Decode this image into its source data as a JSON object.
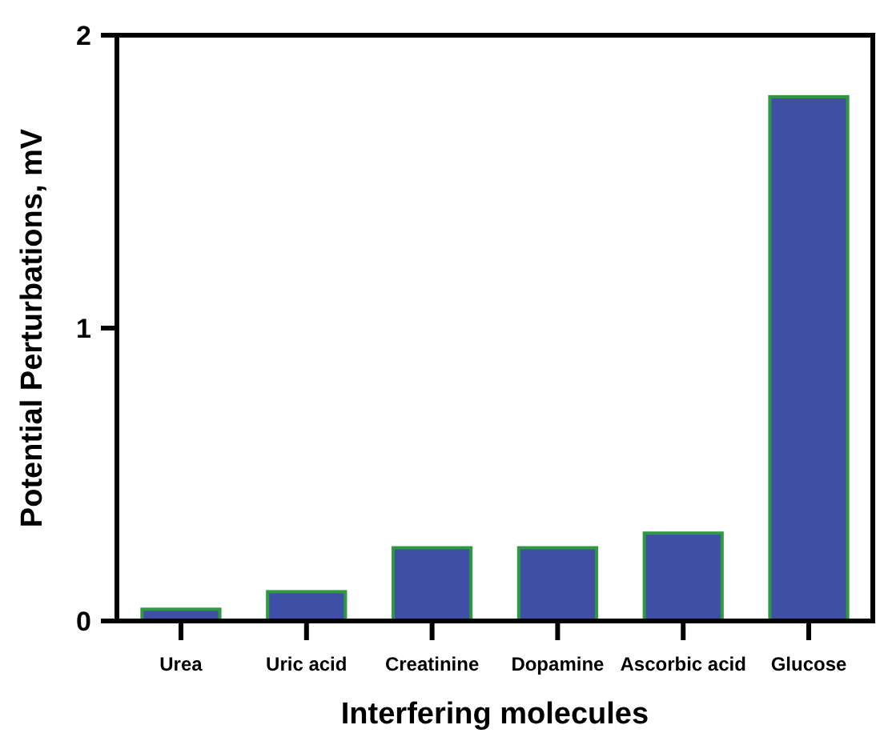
{
  "chart_data": {
    "type": "bar",
    "xlabel": "Interfering molecules",
    "ylabel": "Potential Perturbations, mV",
    "categories": [
      "Urea",
      "Uric acid",
      "Creatinine",
      "Dopamine",
      "Ascorbic acid",
      "Glucose"
    ],
    "values": [
      0.04,
      0.1,
      0.25,
      0.25,
      0.3,
      1.79
    ],
    "color": "#3f4fa6",
    "ylim": [
      0,
      2
    ],
    "yticks": [
      0,
      1,
      2
    ],
    "grid": false
  }
}
